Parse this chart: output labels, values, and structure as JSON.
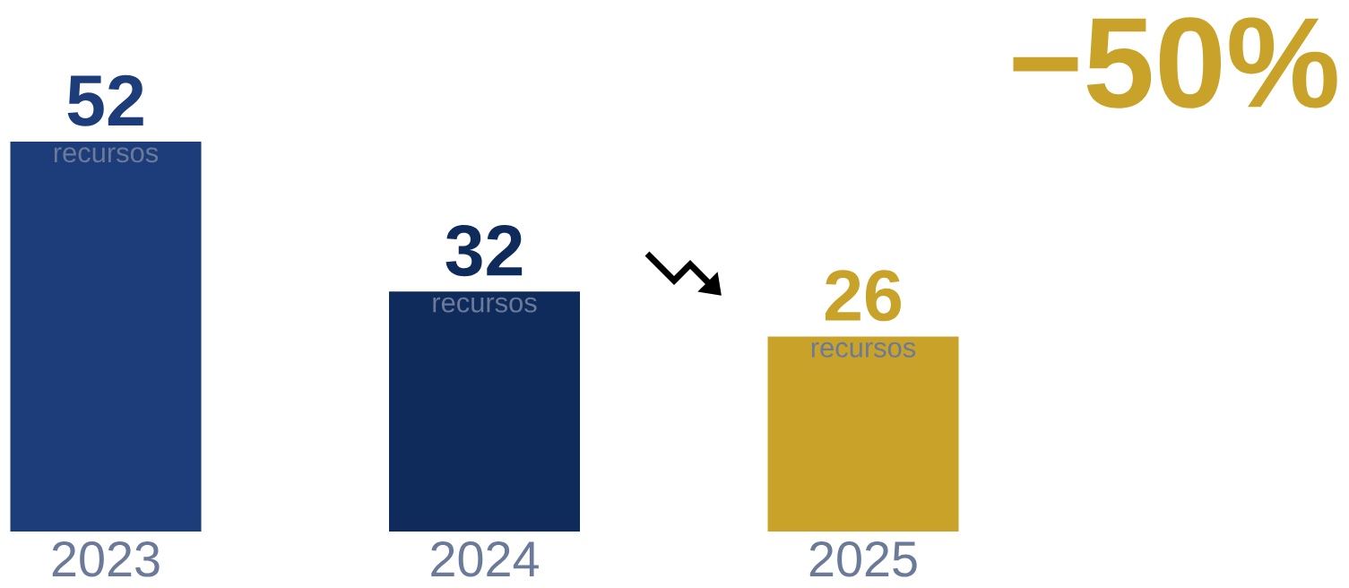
{
  "chart_data": {
    "type": "bar",
    "categories": [
      "2023",
      "2024",
      "2025"
    ],
    "values": [
      52,
      32,
      26
    ],
    "colors": [
      "#1c3d7a",
      "#0f2b5b",
      "#c9a22a"
    ],
    "data_labels": true,
    "annotations": [
      {
        "text": "recursos",
        "x": "2023",
        "y": 52
      },
      {
        "text": "recursos",
        "x": "2024",
        "y": 32
      },
      {
        "text": "recursos",
        "x": "2025",
        "y": 26
      },
      "−50%"
    ]
  }
}
